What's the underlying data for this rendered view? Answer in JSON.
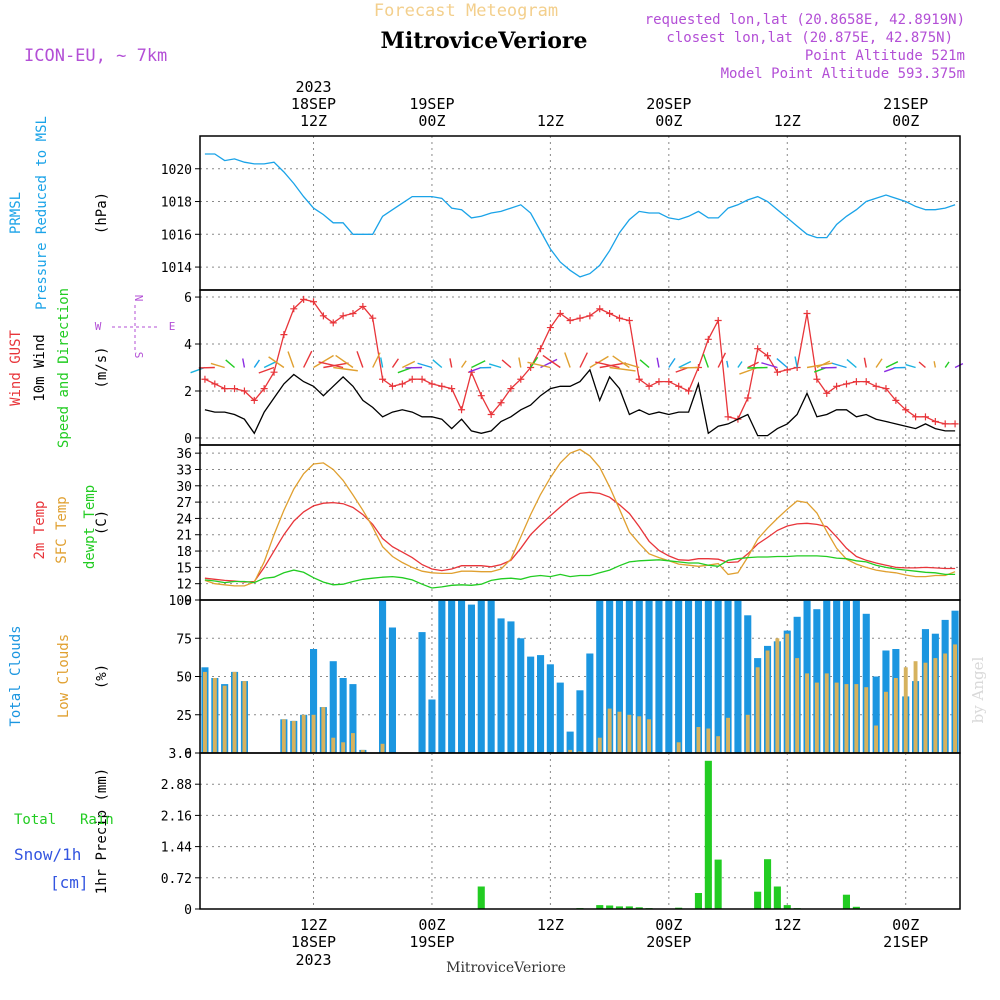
{
  "header": {
    "app_title": "Forecast Meteogram",
    "station": "MitroviceVeriore",
    "model": "ICON-EU, ~ 7km",
    "requested": "requested lon,lat (20.8658E, 42.8919N)",
    "closest": "closest lon,lat (20.875E, 42.875N)",
    "point_alt": "Point Altitude 521m",
    "model_alt": "Model Point Altitude 593.375m",
    "footer_station": "MitroviceVeriore",
    "watermark": "by Angel",
    "snow_label": "Snow/1h",
    "snow_unit": "[cm]"
  },
  "time_axis": {
    "year": "2023",
    "ticks": [
      {
        "time": 12,
        "line1": "12Z",
        "line2": "18SEP",
        "line3": "2023"
      },
      {
        "time": 24,
        "line1": "00Z",
        "line2": "19SEP",
        "line3": ""
      },
      {
        "time": 36,
        "line1": "12Z",
        "line2": "",
        "line3": ""
      },
      {
        "time": 48,
        "line1": "00Z",
        "line2": "20SEP",
        "line3": ""
      },
      {
        "time": 60,
        "line1": "12Z",
        "line2": "",
        "line3": ""
      },
      {
        "time": 72,
        "line1": "00Z",
        "line2": "21SEP",
        "line3": ""
      }
    ],
    "range": [
      1,
      77
    ]
  },
  "colors": {
    "pressure": "#1aa3e8",
    "gust": "#e8353a",
    "wind": "#000000",
    "green": "#22cc22",
    "sfc": "#e0a030",
    "total_cloud": "#1b96e0",
    "low_cloud": "#d6b25e",
    "title": "#f3cf8c",
    "purple": "#b34fd6",
    "snow": "#3355e0",
    "watermark": "#d9d9d9"
  },
  "chart_data": [
    {
      "type": "line",
      "title": "PRMSL",
      "ylabel_lines": [
        "PRMSL",
        "Pressure Reduced to MSL"
      ],
      "unit": "(hPa)",
      "ylim": [
        1012.6,
        1022
      ],
      "yticks": [
        1014,
        1016,
        1018,
        1020
      ],
      "series": [
        {
          "name": "PRMSL",
          "x": [
            1,
            2,
            3,
            4,
            5,
            6,
            7,
            8,
            9,
            10,
            11,
            12,
            13,
            14,
            15,
            16,
            17,
            18,
            19,
            20,
            21,
            22,
            23,
            24,
            25,
            26,
            27,
            28,
            29,
            30,
            31,
            32,
            33,
            34,
            35,
            36,
            37,
            38,
            39,
            40,
            41,
            42,
            43,
            44,
            45,
            46,
            47,
            48,
            49,
            50,
            51,
            52,
            53,
            54,
            55,
            56,
            57,
            58,
            59,
            60,
            61,
            62,
            63,
            64,
            65,
            66,
            67,
            68,
            69,
            70,
            71,
            72,
            73,
            74,
            75,
            76,
            77
          ],
          "values": [
            1020.9,
            1020.9,
            1020.5,
            1020.6,
            1020.4,
            1020.3,
            1020.3,
            1020.4,
            1019.8,
            1019.1,
            1018.3,
            1017.6,
            1017.2,
            1016.7,
            1016.7,
            1016.0,
            1016.0,
            1016.0,
            1017.1,
            1017.5,
            1017.9,
            1018.3,
            1018.3,
            1018.3,
            1018.2,
            1017.6,
            1017.5,
            1017.0,
            1017.1,
            1017.3,
            1017.4,
            1017.6,
            1017.8,
            1017.3,
            1016.2,
            1015.1,
            1014.3,
            1013.8,
            1013.4,
            1013.6,
            1014.1,
            1015.0,
            1016.1,
            1016.9,
            1017.4,
            1017.3,
            1017.3,
            1017.0,
            1016.9,
            1017.1,
            1017.4,
            1017.0,
            1017.0,
            1017.6,
            1017.8,
            1018.1,
            1018.3,
            1018.0,
            1017.5,
            1017.0,
            1016.5,
            1016.0,
            1015.8,
            1015.8,
            1016.6,
            1017.1,
            1017.5,
            1018.0,
            1018.2,
            1018.4,
            1018.2,
            1018.0,
            1017.7,
            1017.5,
            1017.5,
            1017.6,
            1017.8
          ]
        }
      ]
    },
    {
      "type": "line",
      "title": "Wind",
      "ylabel_lines": [
        "Wind GUST",
        "10m Wind",
        "Speed and Direction"
      ],
      "unit": "(m/s)",
      "ylim": [
        -0.3,
        6.3
      ],
      "yticks": [
        0,
        2,
        4,
        6
      ],
      "compass": {
        "n": "N",
        "s": "S",
        "w": "W",
        "e": "E"
      },
      "series": [
        {
          "name": "Wind GUST",
          "values": [
            2.5,
            2.3,
            2.1,
            2.1,
            2.0,
            1.6,
            2.1,
            2.8,
            4.4,
            5.5,
            5.9,
            5.8,
            5.2,
            4.9,
            5.2,
            5.3,
            5.6,
            5.1,
            2.5,
            2.2,
            2.3,
            2.5,
            2.5,
            2.3,
            2.2,
            2.1,
            1.2,
            2.8,
            1.8,
            1.0,
            1.5,
            2.1,
            2.5,
            3.0,
            3.8,
            4.7,
            5.3,
            5.0,
            5.1,
            5.2,
            5.5,
            5.3,
            5.1,
            5.0,
            2.5,
            2.2,
            2.4,
            2.4,
            2.2,
            2.0,
            3.0,
            4.2,
            5.0,
            0.9,
            0.8,
            1.7,
            3.8,
            3.5,
            2.8,
            2.9,
            3.0,
            5.3,
            2.5,
            1.9,
            2.2,
            2.3,
            2.4,
            2.4,
            2.2,
            2.1,
            1.6,
            1.2,
            0.9,
            0.9,
            0.7,
            0.6,
            0.6
          ]
        },
        {
          "name": "10m Wind",
          "values": [
            1.2,
            1.1,
            1.1,
            1.0,
            0.8,
            0.2,
            1.1,
            1.7,
            2.3,
            2.7,
            2.4,
            2.2,
            1.8,
            2.2,
            2.6,
            2.2,
            1.6,
            1.3,
            0.9,
            1.1,
            1.2,
            1.1,
            0.9,
            0.9,
            0.8,
            0.4,
            0.8,
            0.3,
            0.2,
            0.3,
            0.7,
            0.9,
            1.2,
            1.4,
            1.8,
            2.1,
            2.2,
            2.2,
            2.4,
            2.9,
            1.6,
            2.6,
            2.1,
            1.0,
            1.2,
            1.0,
            1.1,
            1.0,
            1.1,
            1.1,
            2.3,
            0.2,
            0.5,
            0.6,
            0.8,
            1.0,
            0.1,
            0.1,
            0.4,
            0.6,
            1.0,
            1.9,
            0.9,
            1.0,
            1.2,
            1.2,
            0.9,
            1.0,
            0.8,
            0.7,
            0.6,
            0.5,
            0.4,
            0.6,
            0.4,
            0.3,
            0.3
          ]
        }
      ]
    },
    {
      "type": "line",
      "title": "Temperature",
      "ylabel_lines": [
        "2m Temp",
        "SFC Temp",
        "dewpt Temp"
      ],
      "unit": "(C)",
      "ylim": [
        9,
        37.5
      ],
      "yticks": [
        9,
        12,
        15,
        18,
        21,
        24,
        27,
        30,
        33,
        36
      ],
      "series": [
        {
          "name": "2m Temp",
          "values": [
            13,
            12.8,
            12.6,
            12.5,
            12.3,
            12.4,
            15,
            18,
            21,
            23.5,
            25.2,
            26.3,
            26.8,
            26.9,
            26.7,
            26.0,
            24.7,
            22.9,
            20.3,
            18.8,
            17.8,
            16.8,
            15.5,
            14.7,
            14.4,
            14.7,
            15.3,
            15.3,
            15.3,
            15.1,
            15.5,
            16.3,
            18.5,
            21.0,
            22.8,
            24.5,
            26.1,
            27.6,
            28.6,
            28.8,
            28.6,
            27.9,
            26.5,
            24.9,
            22.5,
            19.8,
            18.1,
            17.1,
            16.4,
            16.3,
            16.6,
            16.6,
            16.5,
            15.9,
            16.0,
            17.5,
            19.3,
            20.5,
            21.8,
            22.6,
            23.0,
            23.1,
            22.9,
            22.5,
            20.6,
            18.5,
            17.0,
            16.3,
            15.8,
            15.4,
            15.0,
            14.9,
            14.9,
            15.0,
            14.9,
            14.8,
            14.8
          ]
        },
        {
          "name": "SFC Temp",
          "values": [
            12.6,
            12.0,
            11.8,
            11.6,
            11.6,
            12.3,
            16,
            21,
            25.5,
            29.4,
            32.2,
            34.0,
            34.2,
            33.0,
            31.0,
            28.3,
            25.5,
            22.4,
            18.8,
            17.0,
            15.9,
            15.0,
            14.3,
            14.0,
            13.9,
            13.9,
            14.3,
            14.3,
            14.2,
            14.2,
            14.7,
            16.5,
            20.6,
            24.7,
            28.4,
            31.5,
            34.2,
            36.0,
            36.7,
            35.5,
            33.4,
            29.8,
            25.7,
            21.5,
            19.4,
            17.5,
            16.8,
            16.2,
            15.6,
            15.4,
            15.2,
            15.4,
            15.7,
            13.7,
            14.0,
            16.9,
            20.2,
            22.2,
            24.0,
            25.7,
            27.2,
            26.9,
            25.0,
            21.6,
            18.5,
            16.5,
            15.6,
            15.0,
            14.5,
            14.2,
            14.0,
            13.6,
            13.3,
            13.3,
            13.5,
            13.5,
            14.2
          ]
        },
        {
          "name": "dewpt Temp",
          "values": [
            12.7,
            12.5,
            12.2,
            12.4,
            12.4,
            12.2,
            13.0,
            13.2,
            14.0,
            14.5,
            14.1,
            13.1,
            12.3,
            11.8,
            11.9,
            12.4,
            12.8,
            13.0,
            13.2,
            13.3,
            13.1,
            12.7,
            11.9,
            11.2,
            11.4,
            11.7,
            11.8,
            11.7,
            11.9,
            12.6,
            12.9,
            13.0,
            12.8,
            13.3,
            13.5,
            13.3,
            13.7,
            13.3,
            13.5,
            13.5,
            14.0,
            14.5,
            15.3,
            16.0,
            16.2,
            16.3,
            16.4,
            16.2,
            16.0,
            15.8,
            15.8,
            15.4,
            15.2,
            16.3,
            16.6,
            16.8,
            16.9,
            16.9,
            17.0,
            17.0,
            17.1,
            17.1,
            17.1,
            17.0,
            16.7,
            16.6,
            16.2,
            16.0,
            15.4,
            15.0,
            14.7,
            14.5,
            14.3,
            14.1,
            14.0,
            13.7,
            13.7
          ]
        }
      ]
    },
    {
      "type": "bar",
      "title": "Clouds",
      "ylabel_lines": [
        "Total Clouds",
        "Low Clouds"
      ],
      "unit": "(%)",
      "ylim": [
        0,
        100
      ],
      "yticks": [
        0,
        25,
        50,
        75,
        100
      ],
      "series": [
        {
          "name": "Total Clouds",
          "values": [
            56,
            49,
            45,
            53,
            47,
            0,
            0,
            0,
            22,
            21,
            25,
            68,
            30,
            60,
            49,
            45,
            2,
            0,
            100,
            82,
            0,
            0,
            79,
            35,
            100,
            100,
            100,
            97,
            100,
            100,
            88,
            86,
            75,
            63,
            64,
            58,
            46,
            14,
            41,
            65,
            100,
            100,
            100,
            100,
            100,
            100,
            100,
            100,
            100,
            100,
            100,
            100,
            100,
            100,
            100,
            90,
            62,
            70,
            73,
            80,
            89,
            100,
            94,
            100,
            100,
            100,
            100,
            91,
            50,
            67,
            68,
            37,
            47,
            81,
            78,
            87,
            93
          ]
        },
        {
          "name": "Low Clouds",
          "values": [
            53,
            49,
            44,
            53,
            47,
            0,
            0,
            0,
            22,
            21,
            25,
            25,
            30,
            10,
            7,
            13,
            2,
            0,
            6,
            0,
            0,
            0,
            0,
            0,
            0,
            0,
            0,
            0,
            0,
            0,
            0,
            0,
            0,
            0,
            0,
            0,
            0,
            2,
            1,
            0,
            10,
            29,
            27,
            25,
            24,
            22,
            0,
            0,
            7,
            0,
            17,
            16,
            11,
            23,
            0,
            25,
            56,
            67,
            75,
            78,
            62,
            52,
            46,
            52,
            46,
            45,
            45,
            43,
            18,
            40,
            49,
            56,
            60,
            59,
            62,
            65,
            71
          ]
        }
      ]
    },
    {
      "type": "bar",
      "title": "Precip",
      "ylabel_lines": [
        "Total",
        "Rain"
      ],
      "unit": "1hr Precip (mm)",
      "ylim": [
        0,
        3.6
      ],
      "yticks": [
        0,
        0.72,
        1.44,
        2.16,
        2.88,
        3.6
      ],
      "series": [
        {
          "name": "Total Rain",
          "values": [
            0,
            0,
            0,
            0,
            0,
            0,
            0,
            0,
            0,
            0,
            0,
            0,
            0,
            0,
            0,
            0,
            0,
            0,
            0,
            0,
            0,
            0,
            0,
            0,
            0,
            0,
            0,
            0,
            0.52,
            0,
            0,
            0,
            0,
            0,
            0,
            0,
            0,
            0,
            0.02,
            0,
            0.09,
            0.08,
            0.06,
            0.06,
            0.04,
            0.02,
            0,
            0,
            0.03,
            0,
            0.37,
            3.42,
            1.14,
            0,
            0,
            0,
            0.4,
            1.15,
            0.52,
            0.09,
            0.02,
            0,
            0,
            0,
            0,
            0.33,
            0.05,
            0,
            0,
            0,
            0,
            0,
            0,
            0,
            0,
            0,
            0
          ]
        }
      ]
    }
  ]
}
